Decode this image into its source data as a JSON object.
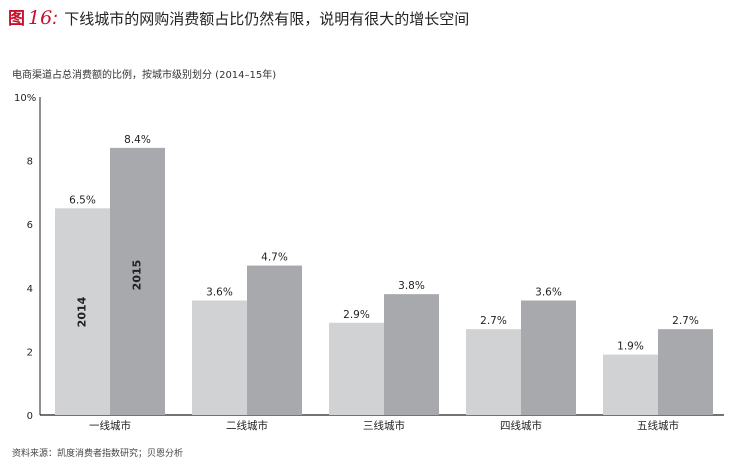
{
  "header": {
    "fig_prefix": "图",
    "fig_number": "16",
    "fig_colon": ":",
    "title": "下线城市的网购消费额占比仍然有限，说明有很大的增长空间"
  },
  "subtitle": "电商渠道占总消费额的比例，按城市级别划分 (2014–15年)",
  "source": "资料来源：凯度消费者指数研究；贝恩分析",
  "colors": {
    "accent": "#c8102e",
    "series_2014": "#d1d2d4",
    "series_2015": "#a7a9ac"
  },
  "chart_data": {
    "type": "bar",
    "categories": [
      "一线城市",
      "二线城市",
      "三线城市",
      "四线城市",
      "五线城市"
    ],
    "series": [
      {
        "name": "2014",
        "values": [
          6.5,
          3.6,
          2.9,
          2.7,
          1.9
        ],
        "labels": [
          "6.5%",
          "3.6%",
          "2.9%",
          "2.7%",
          "1.9%"
        ]
      },
      {
        "name": "2015",
        "values": [
          8.4,
          4.7,
          3.8,
          3.6,
          2.7
        ],
        "labels": [
          "8.4%",
          "4.7%",
          "3.8%",
          "3.6%",
          "2.7%"
        ]
      }
    ],
    "yticks": [
      {
        "value": 0,
        "label": "0"
      },
      {
        "value": 2,
        "label": "2"
      },
      {
        "value": 4,
        "label": "4"
      },
      {
        "value": 6,
        "label": "6"
      },
      {
        "value": 8,
        "label": "8"
      },
      {
        "value": 10,
        "label": "10%"
      }
    ],
    "ylim": [
      0,
      10
    ],
    "grid": false,
    "legend": "series names printed vertically inside the first pair of bars"
  }
}
